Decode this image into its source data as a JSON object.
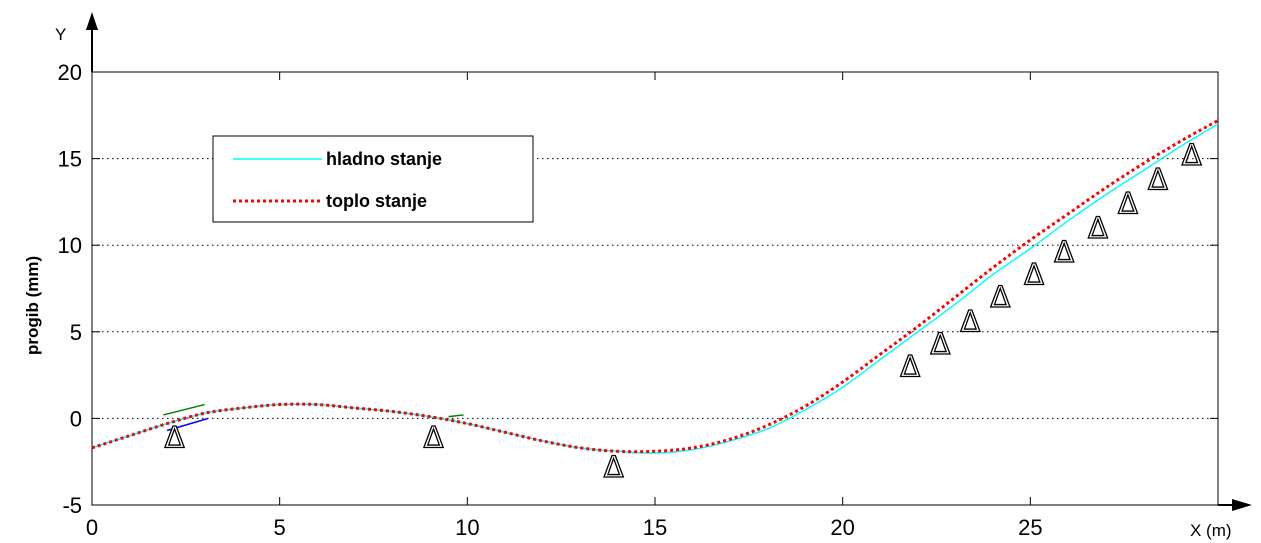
{
  "chart_data": {
    "type": "line",
    "title": "",
    "xlabel": "X (m)",
    "ylabel": "progib (mm)",
    "y_axis_marker": "Y",
    "xlim": [
      0,
      30
    ],
    "ylim": [
      -5,
      20
    ],
    "xticks": [
      0,
      5,
      10,
      15,
      20,
      25
    ],
    "yticks": [
      -5,
      0,
      5,
      10,
      15,
      20
    ],
    "grid": "y-dotted",
    "legend_position": "top-left",
    "support_symbol": "Δ",
    "series": [
      {
        "name": "hladno stanje",
        "color": "#00ffff",
        "style": "solid",
        "x": [
          0,
          1,
          2,
          3,
          4,
          5,
          6,
          7,
          8,
          9,
          10,
          11,
          12,
          13,
          14,
          15,
          16,
          17,
          18,
          19,
          20,
          21,
          22,
          23,
          24,
          25,
          26,
          27,
          28,
          29,
          30
        ],
        "y": [
          -1.7,
          -1.0,
          -0.3,
          0.3,
          0.6,
          0.8,
          0.8,
          0.6,
          0.4,
          0.1,
          -0.3,
          -0.8,
          -1.3,
          -1.7,
          -1.9,
          -2.0,
          -1.8,
          -1.3,
          -0.6,
          0.5,
          1.8,
          3.4,
          5.0,
          6.6,
          8.3,
          9.8,
          11.4,
          12.9,
          14.3,
          15.7,
          17.0
        ]
      },
      {
        "name": "toplo stanje",
        "color": "#ff0000",
        "style": "dotted",
        "x": [
          0,
          1,
          2,
          3,
          4,
          5,
          6,
          7,
          8,
          9,
          10,
          11,
          12,
          13,
          14,
          15,
          16,
          17,
          18,
          19,
          20,
          21,
          22,
          23,
          24,
          25,
          26,
          27,
          28,
          29,
          30
        ],
        "y": [
          -1.7,
          -1.0,
          -0.3,
          0.3,
          0.6,
          0.8,
          0.8,
          0.6,
          0.4,
          0.1,
          -0.3,
          -0.8,
          -1.3,
          -1.7,
          -1.9,
          -1.9,
          -1.7,
          -1.2,
          -0.4,
          0.7,
          2.1,
          3.7,
          5.3,
          7.0,
          8.7,
          10.3,
          11.8,
          13.3,
          14.7,
          16.0,
          17.2
        ]
      }
    ],
    "supports": [
      {
        "x": 2.2,
        "y": -1.1
      },
      {
        "x": 9.1,
        "y": -1.1
      },
      {
        "x": 13.9,
        "y": -2.8
      },
      {
        "x": 21.8,
        "y": 3.0
      },
      {
        "x": 22.6,
        "y": 4.3
      },
      {
        "x": 23.4,
        "y": 5.6
      },
      {
        "x": 24.2,
        "y": 7.0
      },
      {
        "x": 25.1,
        "y": 8.3
      },
      {
        "x": 25.9,
        "y": 9.6
      },
      {
        "x": 26.8,
        "y": 11.0
      },
      {
        "x": 27.6,
        "y": 12.4
      },
      {
        "x": 28.4,
        "y": 13.8
      },
      {
        "x": 29.3,
        "y": 15.2
      }
    ],
    "small_segments": [
      {
        "color": "#008000",
        "x1": 1.9,
        "y1": 0.2,
        "x2": 3.0,
        "y2": 0.8
      },
      {
        "color": "#0000ff",
        "x1": 2.0,
        "y1": -0.7,
        "x2": 3.1,
        "y2": 0.0
      },
      {
        "color": "#008000",
        "x1": 9.5,
        "y1": 0.1,
        "x2": 9.9,
        "y2": 0.2
      }
    ]
  }
}
